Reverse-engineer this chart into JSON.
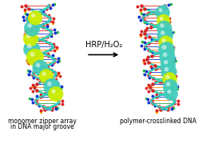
{
  "background_color": "#ffffff",
  "arrow_text": "HRP/H₂O₂",
  "arrow_fontsize": 7.0,
  "left_caption_line1": "monomer zipper array",
  "left_caption_line2": "in DNA major groove",
  "right_caption": "polymer-crosslinked DNA",
  "caption_fontsize": 5.5,
  "yellow_green": "#ccee00",
  "cyan_color": "#44ccbb",
  "red_color": "#dd2222",
  "blue_color": "#1133cc",
  "orange_color": "#dd8800",
  "yellow_color": "#eecc00",
  "backbone_color": "#33ccbb",
  "bg": "#f8f8f8"
}
